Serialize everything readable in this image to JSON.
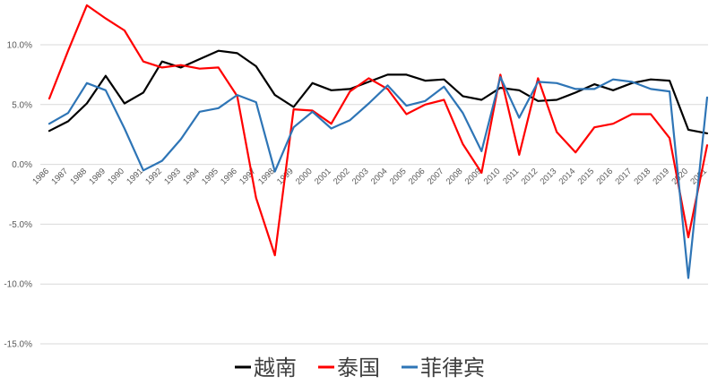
{
  "chart_data": {
    "type": "line",
    "title": "",
    "xlabel": "",
    "ylabel": "",
    "ylim": [
      -15,
      10
    ],
    "ytick_step": 5,
    "grid": "horizontal",
    "legend_position": "bottom",
    "x": [
      "1986",
      "1987",
      "1988",
      "1989",
      "1990",
      "1991",
      "1992",
      "1993",
      "1994",
      "1995",
      "1996",
      "1997",
      "1998",
      "1999",
      "2000",
      "2001",
      "2002",
      "2003",
      "2004",
      "2005",
      "2006",
      "2007",
      "2008",
      "2009",
      "2010",
      "2011",
      "2012",
      "2013",
      "2014",
      "2015",
      "2016",
      "2017",
      "2018",
      "2019",
      "2020",
      "2021"
    ],
    "yticks": [
      "10.0%",
      "5.0%",
      "0.0%",
      "-5.0%",
      "-10.0%",
      "-15.0%"
    ],
    "series": [
      {
        "name": "越南",
        "color": "#000000",
        "values": [
          2.8,
          3.6,
          5.1,
          7.4,
          5.1,
          6.0,
          8.6,
          8.1,
          8.8,
          9.5,
          9.3,
          8.2,
          5.8,
          4.8,
          6.8,
          6.2,
          6.3,
          6.9,
          7.5,
          7.5,
          7.0,
          7.1,
          5.7,
          5.4,
          6.4,
          6.2,
          5.3,
          5.4,
          6.0,
          6.7,
          6.2,
          6.8,
          7.1,
          7.0,
          2.9,
          2.6
        ]
      },
      {
        "name": "泰国",
        "color": "#ff0000",
        "values": [
          5.5,
          9.5,
          13.3,
          12.2,
          11.2,
          8.6,
          8.1,
          8.3,
          8.0,
          8.1,
          5.7,
          -2.8,
          -7.6,
          4.6,
          4.5,
          3.4,
          6.1,
          7.2,
          6.3,
          4.2,
          5.0,
          5.4,
          1.7,
          -0.7,
          7.5,
          0.8,
          7.2,
          2.7,
          1.0,
          3.1,
          3.4,
          4.2,
          4.2,
          2.2,
          -6.1,
          1.6
        ]
      },
      {
        "name": "菲律宾",
        "color": "#2e75b6",
        "values": [
          3.4,
          4.3,
          6.8,
          6.2,
          3.0,
          -0.5,
          0.3,
          2.1,
          4.4,
          4.7,
          5.8,
          5.2,
          -0.6,
          3.1,
          4.4,
          3.0,
          3.7,
          5.1,
          6.6,
          4.9,
          5.3,
          6.5,
          4.3,
          1.1,
          7.3,
          3.9,
          6.9,
          6.8,
          6.3,
          6.3,
          7.1,
          6.9,
          6.3,
          6.1,
          -9.5,
          5.6
        ]
      }
    ]
  }
}
